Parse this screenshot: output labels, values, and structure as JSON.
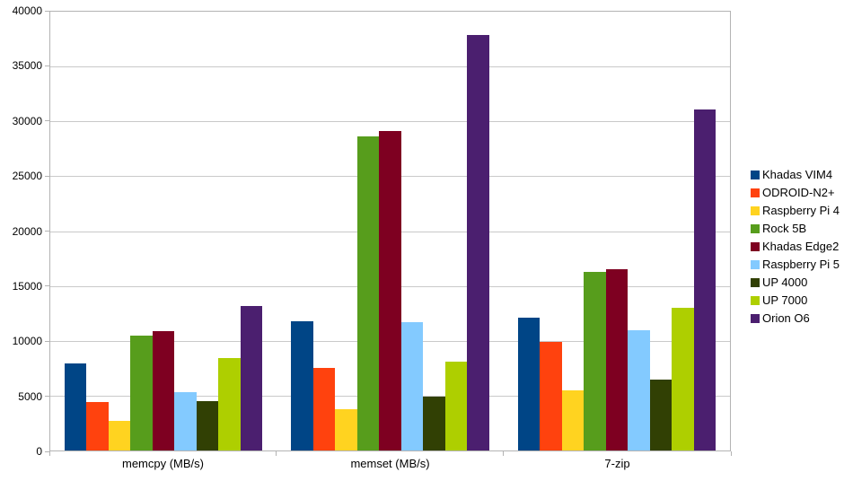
{
  "chart_data": {
    "type": "bar",
    "title": "",
    "xlabel": "",
    "ylabel": "",
    "categories": [
      "memcpy (MB/s)",
      "memset (MB/s)",
      "7-zip"
    ],
    "series": [
      {
        "name": "Khadas VIM4",
        "color": "#004586",
        "values": [
          7900,
          11800,
          12100
        ]
      },
      {
        "name": "ODROID-N2+",
        "color": "#ff420e",
        "values": [
          4400,
          7500,
          9900
        ]
      },
      {
        "name": "Raspberry Pi 4",
        "color": "#ffd320",
        "values": [
          2700,
          3800,
          5500
        ]
      },
      {
        "name": "Rock 5B",
        "color": "#579d1c",
        "values": [
          10500,
          28600,
          16300
        ]
      },
      {
        "name": "Khadas Edge2",
        "color": "#7e0021",
        "values": [
          10900,
          29100,
          16500
        ]
      },
      {
        "name": "Raspberry Pi 5",
        "color": "#83caff",
        "values": [
          5300,
          11700,
          11000
        ]
      },
      {
        "name": "UP 4000",
        "color": "#314004",
        "values": [
          4500,
          4900,
          6500
        ]
      },
      {
        "name": "UP 7000",
        "color": "#aecf00",
        "values": [
          8400,
          8100,
          13000
        ]
      },
      {
        "name": "Orion O6",
        "color": "#4b1f6f",
        "values": [
          13200,
          37900,
          31100
        ]
      }
    ],
    "ylim": [
      0,
      40000
    ],
    "ytick_step": 5000,
    "ytick_labels": [
      "0",
      "5000",
      "10000",
      "15000",
      "20000",
      "25000",
      "30000",
      "35000",
      "40000"
    ],
    "grid": true,
    "legend_position": "right"
  },
  "style": {
    "axis_color": "#b3b3b3",
    "grid_color": "#c9c9c9",
    "text_color": "#000000",
    "background": "#ffffff"
  }
}
